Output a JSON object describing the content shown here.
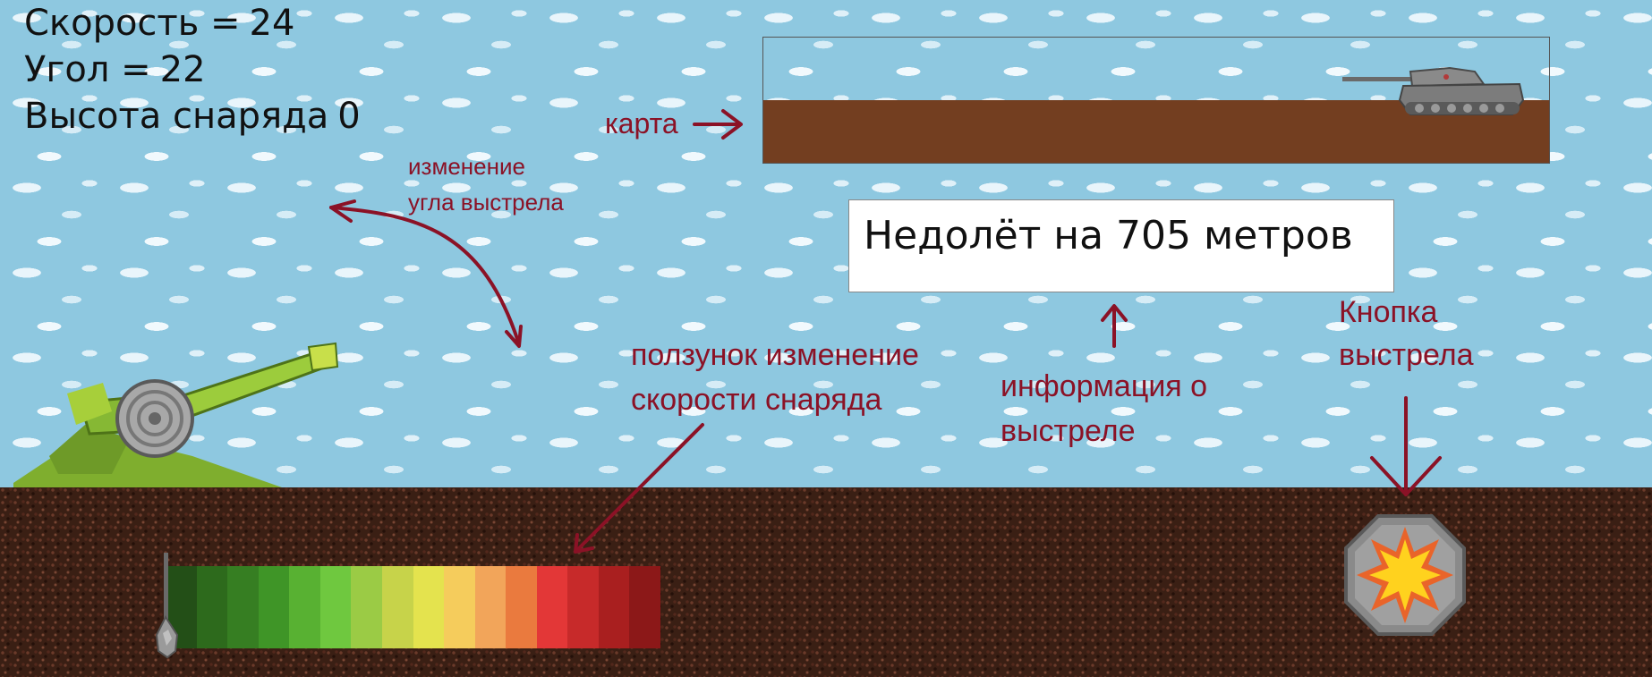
{
  "hud": {
    "speed_label": "Скорость =",
    "speed_value": "24",
    "angle_label": "Угол =",
    "angle_value": "22",
    "height_label": "Высота снаряда",
    "height_value": "0"
  },
  "shot_info": {
    "message": "Недолёт на 705 метров"
  },
  "annotations": {
    "map": "карта",
    "angle_line1": "изменение",
    "angle_line2": "угла выстрела",
    "speed_line1": "ползунок изменение",
    "speed_line2": "скорости снаряда",
    "info_line1": "информация о",
    "info_line2": "выстреле",
    "fire_line1": "Кнопка",
    "fire_line2": "выстрела"
  },
  "speed_slider": {
    "level": 0,
    "segment_colors": [
      "#234f17",
      "#2d6a1c",
      "#367e22",
      "#3f9527",
      "#58b132",
      "#6fc83f",
      "#9bcb45",
      "#c7d34a",
      "#e4e34e",
      "#f5cc5c",
      "#f2a55a",
      "#ea7a3e",
      "#e33737",
      "#c72a2a",
      "#a91f1f",
      "#8c1818"
    ]
  },
  "colors": {
    "annotation": "#8b1226",
    "sky": "#8ec8e0",
    "ground": "#3a1f14",
    "map_soil": "#733e20"
  },
  "icons": {
    "fire_button": "explosion-icon",
    "enemy": "tank-icon",
    "player": "cannon-icon"
  }
}
